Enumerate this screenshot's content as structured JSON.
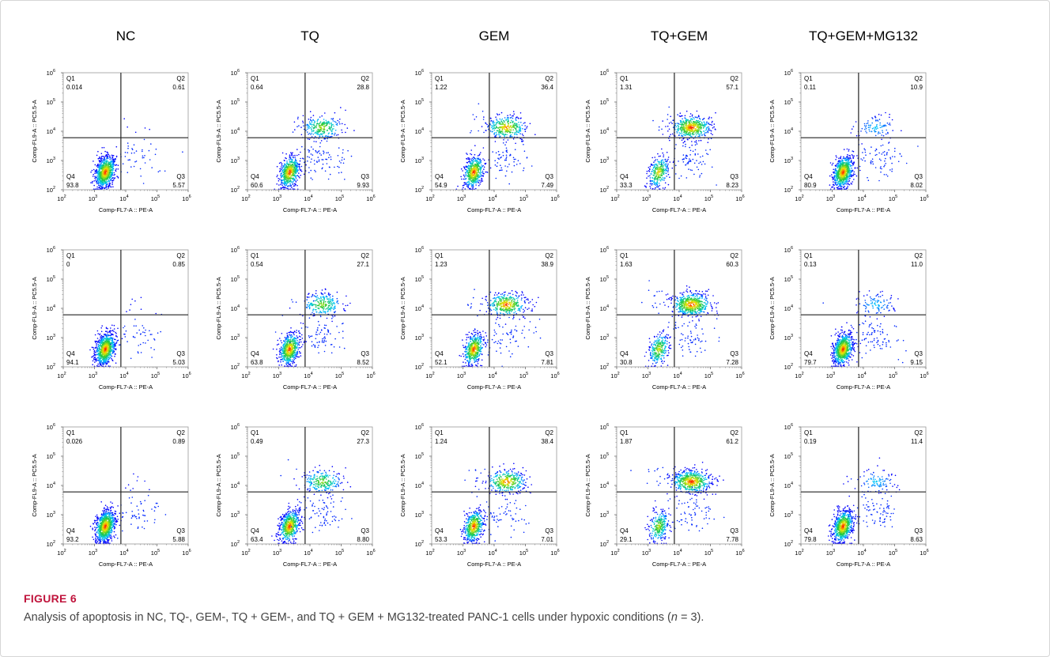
{
  "figure": {
    "label": "FIGURE 6",
    "caption_before_n": "Analysis of apoptosis in NC, TQ-, GEM-, TQ + GEM-, and TQ + GEM + MG132-treated PANC-1 cells under hypoxic conditions (",
    "caption_n": "n",
    "caption_after_n": " = 3)."
  },
  "columns": [
    "NC",
    "TQ",
    "GEM",
    "TQ+GEM",
    "TQ+GEM+MG132"
  ],
  "axes": {
    "xlabel": "Comp-FL7-A :: PE-A",
    "ylabel": "Comp-FL9-A :: PC5.5-A",
    "tick_labels": [
      "10",
      "10",
      "10",
      "10",
      "10"
    ],
    "tick_exponents": [
      "2",
      "3",
      "4",
      "5",
      "6"
    ]
  },
  "quadrant_names": [
    "Q1",
    "Q2",
    "Q3",
    "Q4"
  ],
  "colors": {
    "figure_label": "#c0143c",
    "caption": "#444444",
    "density_low": "#0000ff",
    "density_high": "#ff0000"
  },
  "chart_data": [
    {
      "type": "scatter",
      "condition": "NC",
      "replicate": 1,
      "x_scale": "log",
      "y_scale": "log",
      "xlim": [
        100,
        1000000
      ],
      "ylim": [
        100,
        1000000
      ],
      "gate": {
        "x": 7000,
        "y": 6000
      },
      "quadrants": {
        "Q1": "0.014",
        "Q2": "0.61",
        "Q3": "5.57",
        "Q4": "93.8"
      }
    },
    {
      "type": "scatter",
      "condition": "TQ",
      "replicate": 1,
      "x_scale": "log",
      "y_scale": "log",
      "xlim": [
        100,
        1000000
      ],
      "ylim": [
        100,
        1000000
      ],
      "gate": {
        "x": 7000,
        "y": 6000
      },
      "quadrants": {
        "Q1": "0.64",
        "Q2": "28.8",
        "Q3": "9.93",
        "Q4": "60.6"
      }
    },
    {
      "type": "scatter",
      "condition": "GEM",
      "replicate": 1,
      "x_scale": "log",
      "y_scale": "log",
      "xlim": [
        100,
        1000000
      ],
      "ylim": [
        100,
        1000000
      ],
      "gate": {
        "x": 7000,
        "y": 6000
      },
      "quadrants": {
        "Q1": "1.22",
        "Q2": "36.4",
        "Q3": "7.49",
        "Q4": "54.9"
      }
    },
    {
      "type": "scatter",
      "condition": "TQ+GEM",
      "replicate": 1,
      "x_scale": "log",
      "y_scale": "log",
      "xlim": [
        100,
        1000000
      ],
      "ylim": [
        100,
        1000000
      ],
      "gate": {
        "x": 7000,
        "y": 6000
      },
      "quadrants": {
        "Q1": "1.31",
        "Q2": "57.1",
        "Q3": "8.23",
        "Q4": "33.3"
      }
    },
    {
      "type": "scatter",
      "condition": "TQ+GEM+MG132",
      "replicate": 1,
      "x_scale": "log",
      "y_scale": "log",
      "xlim": [
        100,
        1000000
      ],
      "ylim": [
        100,
        1000000
      ],
      "gate": {
        "x": 7000,
        "y": 6000
      },
      "quadrants": {
        "Q1": "0.11",
        "Q2": "10.9",
        "Q3": "8.02",
        "Q4": "80.9"
      }
    },
    {
      "type": "scatter",
      "condition": "NC",
      "replicate": 2,
      "x_scale": "log",
      "y_scale": "log",
      "xlim": [
        100,
        1000000
      ],
      "ylim": [
        100,
        1000000
      ],
      "gate": {
        "x": 7000,
        "y": 6000
      },
      "quadrants": {
        "Q1": "0",
        "Q2": "0.85",
        "Q3": "5.03",
        "Q4": "94.1"
      }
    },
    {
      "type": "scatter",
      "condition": "TQ",
      "replicate": 2,
      "x_scale": "log",
      "y_scale": "log",
      "xlim": [
        100,
        1000000
      ],
      "ylim": [
        100,
        1000000
      ],
      "gate": {
        "x": 7000,
        "y": 6000
      },
      "quadrants": {
        "Q1": "0.54",
        "Q2": "27.1",
        "Q3": "8.52",
        "Q4": "63.8"
      }
    },
    {
      "type": "scatter",
      "condition": "GEM",
      "replicate": 2,
      "x_scale": "log",
      "y_scale": "log",
      "xlim": [
        100,
        1000000
      ],
      "ylim": [
        100,
        1000000
      ],
      "gate": {
        "x": 7000,
        "y": 6000
      },
      "quadrants": {
        "Q1": "1.23",
        "Q2": "38.9",
        "Q3": "7.81",
        "Q4": "52.1"
      }
    },
    {
      "type": "scatter",
      "condition": "TQ+GEM",
      "replicate": 2,
      "x_scale": "log",
      "y_scale": "log",
      "xlim": [
        100,
        1000000
      ],
      "ylim": [
        100,
        1000000
      ],
      "gate": {
        "x": 7000,
        "y": 6000
      },
      "quadrants": {
        "Q1": "1.63",
        "Q2": "60.3",
        "Q3": "7.28",
        "Q4": "30.8"
      }
    },
    {
      "type": "scatter",
      "condition": "TQ+GEM+MG132",
      "replicate": 2,
      "x_scale": "log",
      "y_scale": "log",
      "xlim": [
        100,
        1000000
      ],
      "ylim": [
        100,
        1000000
      ],
      "gate": {
        "x": 7000,
        "y": 6000
      },
      "quadrants": {
        "Q1": "0.13",
        "Q2": "11.0",
        "Q3": "9.15",
        "Q4": "79.7"
      }
    },
    {
      "type": "scatter",
      "condition": "NC",
      "replicate": 3,
      "x_scale": "log",
      "y_scale": "log",
      "xlim": [
        100,
        1000000
      ],
      "ylim": [
        100,
        1000000
      ],
      "gate": {
        "x": 7000,
        "y": 6000
      },
      "quadrants": {
        "Q1": "0.026",
        "Q2": "0.89",
        "Q3": "5.88",
        "Q4": "93.2"
      }
    },
    {
      "type": "scatter",
      "condition": "TQ",
      "replicate": 3,
      "x_scale": "log",
      "y_scale": "log",
      "xlim": [
        100,
        1000000
      ],
      "ylim": [
        100,
        1000000
      ],
      "gate": {
        "x": 7000,
        "y": 6000
      },
      "quadrants": {
        "Q1": "0.49",
        "Q2": "27.3",
        "Q3": "8.80",
        "Q4": "63.4"
      }
    },
    {
      "type": "scatter",
      "condition": "GEM",
      "replicate": 3,
      "x_scale": "log",
      "y_scale": "log",
      "xlim": [
        100,
        1000000
      ],
      "ylim": [
        100,
        1000000
      ],
      "gate": {
        "x": 7000,
        "y": 6000
      },
      "quadrants": {
        "Q1": "1.24",
        "Q2": "38.4",
        "Q3": "7.01",
        "Q4": "53.3"
      }
    },
    {
      "type": "scatter",
      "condition": "TQ+GEM",
      "replicate": 3,
      "x_scale": "log",
      "y_scale": "log",
      "xlim": [
        100,
        1000000
      ],
      "ylim": [
        100,
        1000000
      ],
      "gate": {
        "x": 7000,
        "y": 6000
      },
      "quadrants": {
        "Q1": "1.87",
        "Q2": "61.2",
        "Q3": "7.78",
        "Q4": "29.1"
      }
    },
    {
      "type": "scatter",
      "condition": "TQ+GEM+MG132",
      "replicate": 3,
      "x_scale": "log",
      "y_scale": "log",
      "xlim": [
        100,
        1000000
      ],
      "ylim": [
        100,
        1000000
      ],
      "gate": {
        "x": 7000,
        "y": 6000
      },
      "quadrants": {
        "Q1": "0.19",
        "Q2": "11.4",
        "Q3": "8.63",
        "Q4": "79.8"
      }
    }
  ]
}
